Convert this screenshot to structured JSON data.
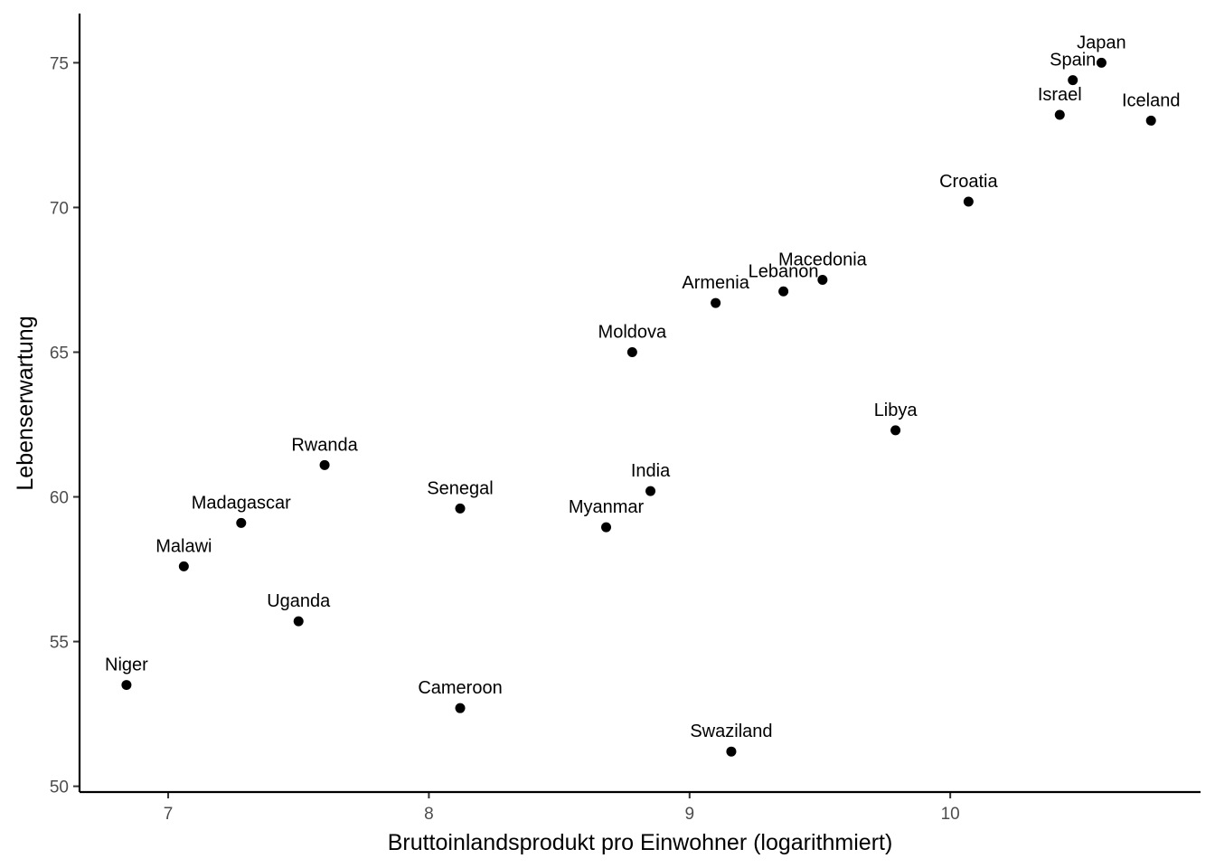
{
  "chart_data": {
    "type": "scatter",
    "title": "",
    "xlabel": "Bruttoinlandsprodukt pro Einwohner (logarithmiert)",
    "ylabel": "Lebenserwartung",
    "xlim": [
      6.66,
      10.96
    ],
    "ylim": [
      49.8,
      76.7
    ],
    "xticks": [
      7,
      8,
      9,
      10
    ],
    "yticks": [
      50,
      55,
      60,
      65,
      70,
      75
    ],
    "grid": false,
    "legend": "none",
    "point_color": "#000000",
    "points": [
      {
        "label": "Japan",
        "x": 10.58,
        "y": 75.0
      },
      {
        "label": "Spain",
        "x": 10.47,
        "y": 74.4
      },
      {
        "label": "Israel",
        "x": 10.42,
        "y": 73.2
      },
      {
        "label": "Iceland",
        "x": 10.77,
        "y": 73.0
      },
      {
        "label": "Croatia",
        "x": 10.07,
        "y": 70.2
      },
      {
        "label": "Macedonia",
        "x": 9.51,
        "y": 67.5
      },
      {
        "label": "Lebanon",
        "x": 9.36,
        "y": 67.1
      },
      {
        "label": "Armenia",
        "x": 9.1,
        "y": 66.7
      },
      {
        "label": "Moldova",
        "x": 8.78,
        "y": 65.0
      },
      {
        "label": "Libya",
        "x": 9.79,
        "y": 62.3
      },
      {
        "label": "Rwanda",
        "x": 7.6,
        "y": 61.1
      },
      {
        "label": "India",
        "x": 8.85,
        "y": 60.2
      },
      {
        "label": "Senegal",
        "x": 8.12,
        "y": 59.6
      },
      {
        "label": "Madagascar",
        "x": 7.28,
        "y": 59.1
      },
      {
        "label": "Myanmar",
        "x": 8.68,
        "y": 58.95
      },
      {
        "label": "Malawi",
        "x": 7.06,
        "y": 57.6
      },
      {
        "label": "Uganda",
        "x": 7.5,
        "y": 55.7
      },
      {
        "label": "Niger",
        "x": 6.84,
        "y": 53.5
      },
      {
        "label": "Cameroon",
        "x": 8.12,
        "y": 52.7
      },
      {
        "label": "Swaziland",
        "x": 9.16,
        "y": 51.2
      }
    ]
  }
}
